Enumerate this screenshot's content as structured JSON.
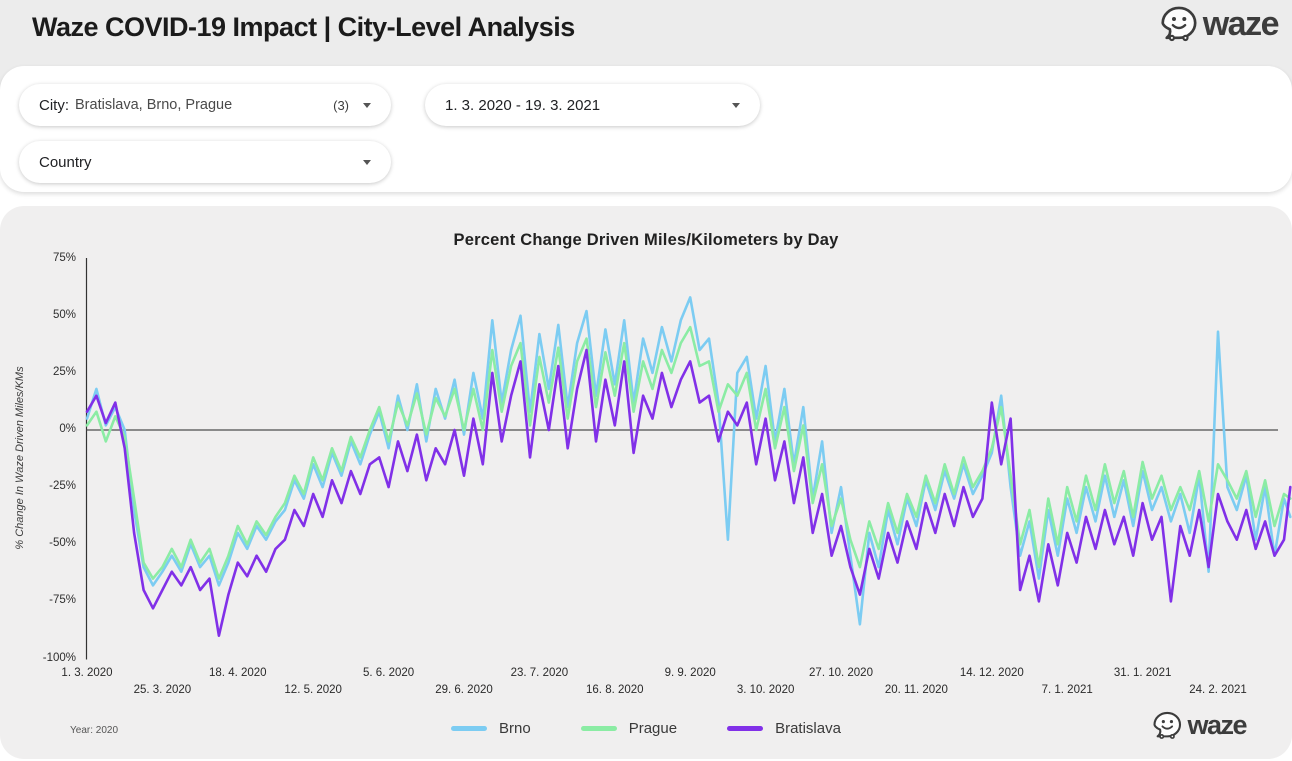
{
  "header": {
    "title": "Waze COVID-19 Impact | City-Level Analysis",
    "logo_text": "waze"
  },
  "filters": {
    "city": {
      "label": "City:",
      "value": "Bratislava, Brno, Prague",
      "count": "(3)"
    },
    "date_range": {
      "value": "1. 3. 2020 - 19. 3. 2021"
    },
    "country": {
      "label": "Country"
    }
  },
  "chart_data": {
    "type": "line",
    "title": "Percent Change Driven Miles/Kilometers by Day",
    "xlabel": "",
    "ylabel": "% Change In Waze Driven Miles/KMs",
    "ylim": [
      -100,
      75
    ],
    "y_ticks": [
      "75%",
      "50%",
      "25%",
      "0%",
      "-25%",
      "-50%",
      "-75%",
      "-100%"
    ],
    "y_tick_values": [
      75,
      50,
      25,
      0,
      -25,
      -50,
      -75,
      -100
    ],
    "grid": "zero-baseline-only",
    "legend_position": "bottom",
    "x_start_date": "1. 3. 2020",
    "x_end_date": "19. 3. 2021",
    "x_step_days": 3,
    "x_max_day": 383,
    "x_ticks": [
      {
        "label": "1. 3. 2020",
        "day": 0
      },
      {
        "label": "25. 3. 2020",
        "day": 24
      },
      {
        "label": "18. 4. 2020",
        "day": 48
      },
      {
        "label": "12. 5. 2020",
        "day": 72
      },
      {
        "label": "5. 6. 2020",
        "day": 96
      },
      {
        "label": "29. 6. 2020",
        "day": 120
      },
      {
        "label": "23. 7. 2020",
        "day": 144
      },
      {
        "label": "16. 8. 2020",
        "day": 168
      },
      {
        "label": "9. 9. 2020",
        "day": 192
      },
      {
        "label": "3. 10. 2020",
        "day": 216
      },
      {
        "label": "27. 10. 2020",
        "day": 240
      },
      {
        "label": "20. 11. 2020",
        "day": 264
      },
      {
        "label": "14. 12. 2020",
        "day": 288
      },
      {
        "label": "7. 1. 2021",
        "day": 312
      },
      {
        "label": "31. 1. 2021",
        "day": 336
      },
      {
        "label": "24. 2. 2021",
        "day": 360
      }
    ],
    "series": [
      {
        "name": "Brno",
        "color": "#7CCCF2",
        "values": [
          5,
          18,
          2,
          10,
          0,
          -35,
          -60,
          -68,
          -62,
          -55,
          -62,
          -50,
          -60,
          -55,
          -68,
          -58,
          -45,
          -52,
          -42,
          -48,
          -40,
          -35,
          -22,
          -30,
          -15,
          -25,
          -10,
          -20,
          -5,
          -15,
          -2,
          8,
          -8,
          15,
          0,
          20,
          -5,
          18,
          5,
          22,
          -2,
          25,
          5,
          48,
          12,
          35,
          50,
          8,
          42,
          18,
          46,
          10,
          38,
          52,
          15,
          44,
          20,
          48,
          12,
          40,
          25,
          45,
          30,
          48,
          58,
          35,
          40,
          12,
          -48,
          25,
          32,
          5,
          28,
          -5,
          18,
          -15,
          10,
          -30,
          -5,
          -45,
          -25,
          -55,
          -85,
          -45,
          -60,
          -35,
          -50,
          -30,
          -42,
          -22,
          -35,
          -18,
          -30,
          -15,
          -28,
          -20,
          -10,
          15,
          -25,
          -55,
          -40,
          -65,
          -35,
          -55,
          -30,
          -45,
          -25,
          -40,
          -20,
          -38,
          -22,
          -42,
          -18,
          -35,
          -25,
          -40,
          -28,
          -45,
          -20,
          -62,
          43,
          -25,
          -35,
          -20,
          -48,
          -25,
          -55,
          -30,
          -38
        ]
      },
      {
        "name": "Prague",
        "color": "#8BECA4",
        "values": [
          2,
          8,
          -5,
          6,
          -3,
          -30,
          -58,
          -65,
          -60,
          -52,
          -60,
          -48,
          -58,
          -52,
          -65,
          -55,
          -42,
          -50,
          -40,
          -46,
          -38,
          -32,
          -20,
          -28,
          -12,
          -22,
          -8,
          -18,
          -3,
          -12,
          0,
          10,
          -5,
          12,
          2,
          16,
          -2,
          14,
          6,
          18,
          0,
          18,
          0,
          35,
          8,
          28,
          38,
          2,
          32,
          12,
          36,
          5,
          30,
          40,
          10,
          34,
          15,
          38,
          8,
          30,
          18,
          35,
          25,
          38,
          45,
          28,
          30,
          8,
          20,
          15,
          25,
          0,
          18,
          -8,
          10,
          -18,
          2,
          -32,
          -15,
          -42,
          -30,
          -48,
          -60,
          -40,
          -52,
          -32,
          -45,
          -28,
          -38,
          -20,
          -32,
          -15,
          -28,
          -12,
          -25,
          -18,
          -8,
          10,
          -20,
          -50,
          -35,
          -60,
          -30,
          -50,
          -25,
          -40,
          -20,
          -35,
          -15,
          -32,
          -18,
          -38,
          -14,
          -30,
          -20,
          -35,
          -25,
          -35,
          -18,
          -40,
          -15,
          -22,
          -30,
          -18,
          -38,
          -22,
          -42,
          -28,
          -30
        ]
      },
      {
        "name": "Bratislava",
        "color": "#8130E8",
        "values": [
          8,
          15,
          3,
          12,
          -8,
          -45,
          -70,
          -78,
          -70,
          -62,
          -68,
          -60,
          -70,
          -65,
          -90,
          -72,
          -58,
          -64,
          -55,
          -62,
          -52,
          -48,
          -35,
          -42,
          -28,
          -38,
          -22,
          -32,
          -18,
          -28,
          -15,
          -12,
          -25,
          -5,
          -18,
          -2,
          -22,
          -8,
          -15,
          0,
          -20,
          5,
          -15,
          25,
          -5,
          15,
          30,
          -12,
          20,
          0,
          28,
          -8,
          18,
          35,
          -5,
          22,
          2,
          30,
          -10,
          15,
          5,
          25,
          10,
          22,
          30,
          12,
          15,
          -5,
          8,
          2,
          12,
          -15,
          5,
          -22,
          -5,
          -32,
          -12,
          -45,
          -28,
          -55,
          -42,
          -60,
          -72,
          -52,
          -65,
          -45,
          -58,
          -40,
          -52,
          -32,
          -45,
          -28,
          -42,
          -25,
          -38,
          -30,
          12,
          -15,
          5,
          -70,
          -55,
          -75,
          -50,
          -68,
          -45,
          -58,
          -38,
          -52,
          -35,
          -50,
          -38,
          -55,
          -32,
          -48,
          -38,
          -75,
          -42,
          -55,
          -35,
          -60,
          -28,
          -40,
          -48,
          -35,
          -52,
          -40,
          -55,
          -48,
          -25
        ]
      }
    ]
  },
  "footer": {
    "year_note": "Year: 2020",
    "logo_text": "waze"
  }
}
